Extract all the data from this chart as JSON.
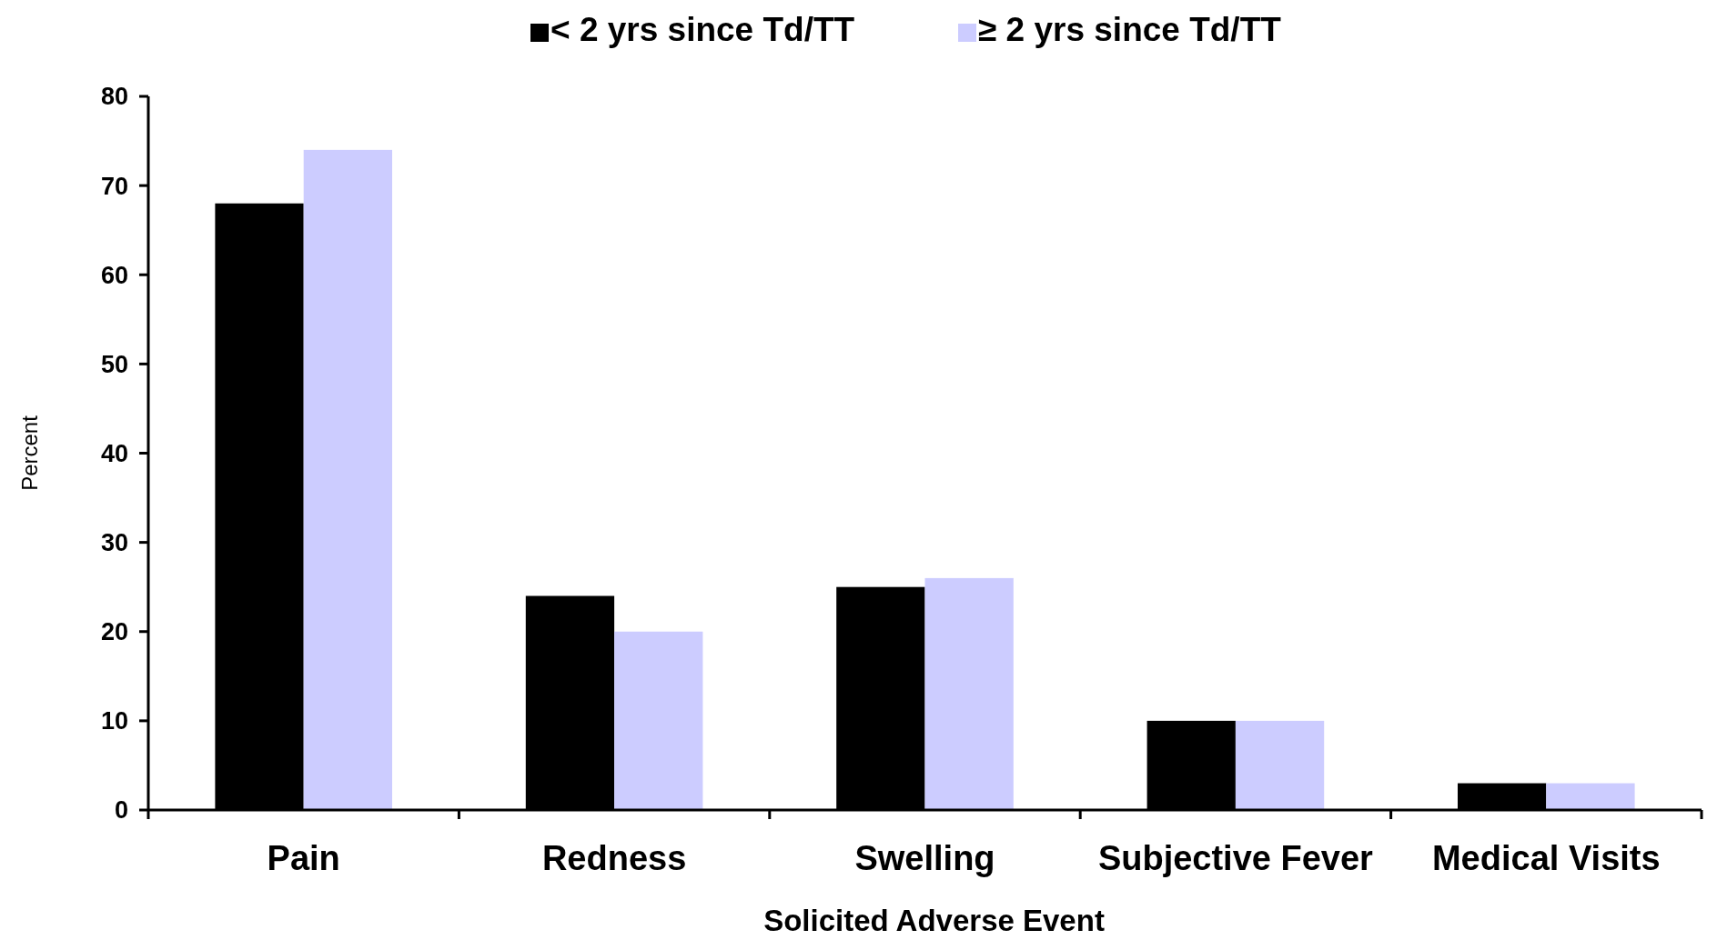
{
  "chart_data": {
    "type": "bar",
    "xlabel": "Solicited Adverse Event",
    "ylabel": "Percent",
    "categories": [
      "Pain",
      "Redness",
      "Swelling",
      "Subjective Fever",
      "Medical Visits"
    ],
    "series": [
      {
        "name": "< 2 yrs  since Td/TT",
        "color": "#000000",
        "values": [
          68,
          24,
          25,
          10,
          3
        ]
      },
      {
        "name": "≥ 2 yrs  since Td/TT",
        "color": "#ccccff",
        "values": [
          74,
          20,
          26,
          10,
          3
        ]
      }
    ],
    "ylim": [
      0,
      80
    ],
    "yticks": [
      0,
      10,
      20,
      30,
      40,
      50,
      60,
      70,
      80
    ],
    "grid": false,
    "legend": "top"
  }
}
